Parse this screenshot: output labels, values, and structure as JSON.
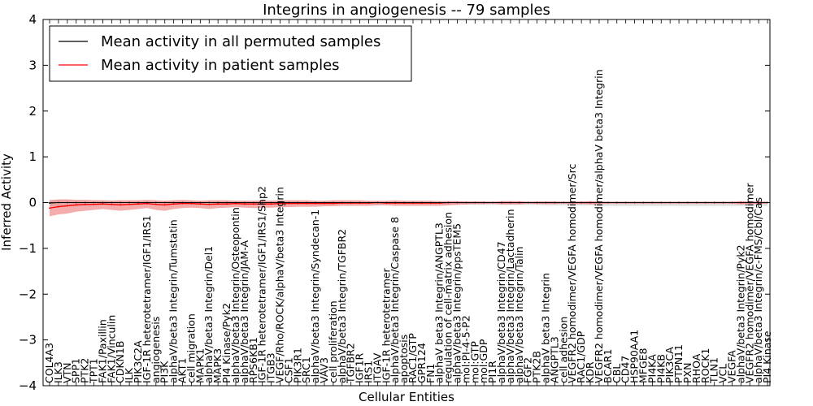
{
  "colors": {
    "mean_line": "#000000",
    "patient_line": "#ff0000",
    "patient_band": "#f08080",
    "permuted_band": "#cfcfcf"
  },
  "chart_data": {
    "type": "line",
    "title": "Integrins in angiogenesis -- 79 samples",
    "xlabel": "Cellular Entities",
    "ylabel": "Inferred Activity",
    "ylim": [
      -4,
      4
    ],
    "yticks": [
      -4,
      -3,
      -2,
      -1,
      0,
      1,
      2,
      3,
      4
    ],
    "grid": false,
    "legend_position": "top-left",
    "categories": [
      "COL4A3",
      "ILK3",
      "VTN",
      "SPP1",
      "PTK2",
      "TPT1",
      "FAK1/Paxillin",
      "FAK1/Vinculin",
      "CDKN1B",
      "ILK",
      "PIK3C2A",
      "IGF-1R heterotetramer/IGF1/IRS1",
      "angiogenesis",
      "PI3K",
      "alphaV/beta3 Integrin/Tumstatin",
      "AKT1",
      "cell migration",
      "MAPK1",
      "alphaV/beta3 Integrin/Del1",
      "MAPK3",
      "PI4 Kinase/Pyk2",
      "alphaV/beta3 Integrin/Osteopontin",
      "alphaV/beta3 Integrin/JAM-A",
      "RPS6KB1",
      "IGF-1R heterotetramer/IGF1/IRS1/Shp2",
      "ITGB3",
      "VEGF/Rho/ROCK/alphaV/beta3 Integrin",
      "CSF1",
      "PIK3R1",
      "SRC1",
      "alphaV/beta3 Integrin/Syndecan-1",
      "VAV3",
      "cell proliferation",
      "alphaV/beta3 Integrin/TGFBR2",
      "TGFBR2",
      "IGF1R",
      "IRS1",
      "ITGAV",
      "IGF-1R heterotetramer",
      "alphaV/beta3 Integrin/Caspase 8",
      "apoptosis",
      "RAC1/GTP",
      "GPR124",
      "FN1",
      "alphaV beta3 Integrin/ANGPTL3",
      "regulation of cell-matrix adhesion",
      "alphaV/beta3 Integrin/ppsTEM5",
      "mol:PI-4-5-P2",
      "mol:GTP",
      "mol:GDP",
      "PI1R",
      "alphaV/beta3 Integrin/CD47",
      "alphaV/beta3 Integrin/Lactadherin",
      "alphaV/beta3 Integrin/Talin",
      "FGF2",
      "PTK2B",
      "alphaV beta3 Integrin",
      "ANGPTL3",
      "cell adhesion",
      "VEGFR2 homodimer/VEGFA homodimer/Src",
      "RAC1/GDP",
      "KDR",
      "VEGFR2 homodimer/VEGFA homodimer/alphaV beta3 Integrin",
      "BCAR1",
      "CBL",
      "CD47",
      "HSP90AA1",
      "MFGE8",
      "PI4KA",
      "PI4KB",
      "PIK3CA",
      "PTPN11",
      "PXN",
      "RHOA",
      "ROCK1",
      "TLN1",
      "VCL",
      "VEGFA",
      "alphaV/beta3 Integrin/Pyk2",
      "VEGFR2 homodimer/VEGFA homodimer",
      "alphaV/beta3 Integrin/c-FMS/Cbl/Cas",
      "PI4 Kinase"
    ],
    "series": [
      {
        "name": "Mean activity in all permuted samples",
        "color": "#000000",
        "values": [
          -0.01,
          0,
          0,
          0,
          0,
          0,
          0,
          0,
          0,
          0,
          0,
          0,
          0,
          0,
          0,
          0,
          0,
          0,
          0,
          0,
          0,
          0,
          0,
          0,
          0,
          0,
          0,
          0,
          0,
          0,
          0,
          0,
          0,
          0,
          0,
          0,
          0,
          0,
          0,
          0,
          0,
          0,
          0,
          0,
          0,
          0,
          0,
          0,
          0,
          0,
          0,
          0,
          0,
          0,
          0,
          0,
          0,
          0,
          0,
          0,
          0,
          0,
          0,
          0,
          0,
          0,
          0,
          0,
          0,
          0,
          0,
          0,
          0,
          0,
          0,
          0,
          0,
          0,
          0,
          0,
          0,
          0
        ],
        "band_upper": [
          0.06,
          0.06,
          0.06,
          0.05,
          0.05,
          0.05,
          0.05,
          0.05,
          0.05,
          0.04,
          0.04,
          0.04,
          0.04,
          0.04,
          0.04,
          0.04,
          0.04,
          0.04,
          0.04,
          0.04,
          0.04,
          0.04,
          0.04,
          0.04,
          0.04,
          0.04,
          0.04,
          0.04,
          0.04,
          0.03,
          0.03,
          0.03,
          0.03,
          0.03,
          0.03,
          0.03,
          0.03,
          0.03,
          0.03,
          0.03,
          0.03,
          0.03,
          0.03,
          0.03,
          0.03,
          0.03,
          0.03,
          0.03,
          0.03,
          0.03,
          0.03,
          0.03,
          0.03,
          0.03,
          0.03,
          0.03,
          0.03,
          0.03,
          0.03,
          0.03,
          0.03,
          0.03,
          0.03,
          0.03,
          0.03,
          0.03,
          0.03,
          0.03,
          0.03,
          0.03,
          0.03,
          0.03,
          0.03,
          0.03,
          0.03,
          0.03,
          0.03,
          0.03,
          0.03,
          0.03,
          0.03,
          0.03
        ],
        "band_lower": [
          -0.08,
          -0.08,
          -0.08,
          -0.07,
          -0.07,
          -0.06,
          -0.06,
          -0.06,
          -0.06,
          -0.05,
          -0.05,
          -0.05,
          -0.05,
          -0.05,
          -0.05,
          -0.05,
          -0.05,
          -0.05,
          -0.05,
          -0.05,
          -0.05,
          -0.05,
          -0.05,
          -0.05,
          -0.05,
          -0.05,
          -0.05,
          -0.05,
          -0.04,
          -0.04,
          -0.04,
          -0.04,
          -0.04,
          -0.04,
          -0.04,
          -0.04,
          -0.04,
          -0.04,
          -0.04,
          -0.04,
          -0.04,
          -0.04,
          -0.04,
          -0.04,
          -0.04,
          -0.04,
          -0.04,
          -0.04,
          -0.05,
          -0.05,
          -0.05,
          -0.05,
          -0.05,
          -0.05,
          -0.05,
          -0.05,
          -0.06,
          -0.06,
          -0.06,
          -0.06,
          -0.06,
          -0.06,
          -0.07,
          -0.07,
          -0.07,
          -0.07,
          -0.07,
          -0.07,
          -0.07,
          -0.07,
          -0.07,
          -0.07,
          -0.07,
          -0.07,
          -0.07,
          -0.07,
          -0.07,
          -0.07,
          -0.07,
          -0.07,
          -0.07,
          -0.07
        ]
      },
      {
        "name": "Mean activity in patient samples",
        "color": "#ff0000",
        "values": [
          -0.12,
          -0.09,
          -0.07,
          -0.05,
          -0.04,
          -0.04,
          -0.03,
          -0.04,
          -0.05,
          -0.04,
          -0.03,
          -0.02,
          -0.04,
          -0.05,
          -0.03,
          -0.02,
          -0.02,
          -0.03,
          -0.04,
          -0.03,
          -0.03,
          -0.02,
          -0.03,
          -0.03,
          -0.03,
          -0.03,
          -0.02,
          -0.02,
          -0.02,
          -0.02,
          -0.02,
          -0.02,
          -0.02,
          -0.01,
          -0.01,
          -0.01,
          -0.01,
          0,
          -0.01,
          -0.01,
          -0.01,
          -0.01,
          -0.01,
          -0.01,
          -0.01,
          0,
          0,
          0,
          0,
          0,
          0,
          0,
          0,
          0,
          0,
          0,
          0,
          0,
          0,
          0,
          0,
          0,
          0,
          0,
          0,
          0,
          0,
          0,
          0,
          0,
          0,
          0,
          0,
          0,
          0,
          0,
          0,
          0,
          0,
          0,
          0,
          0
        ],
        "band_upper": [
          0.05,
          0.07,
          0.07,
          0.06,
          0.06,
          0.05,
          0.05,
          0.04,
          0.05,
          0.05,
          0.05,
          0.06,
          0.05,
          0.04,
          0.05,
          0.06,
          0.05,
          0.04,
          0.05,
          0.05,
          0.05,
          0.04,
          0.04,
          0.04,
          0.05,
          0.04,
          0.05,
          0.05,
          0.05,
          0.05,
          0.04,
          0.04,
          0.05,
          0.05,
          0.05,
          0.05,
          0.04,
          0.04,
          0.04,
          0.05,
          0.04,
          0.04,
          0.04,
          0.04,
          0.03,
          0.03,
          0.03,
          0.02,
          0.02,
          0.02,
          0.01,
          0.03,
          0.03,
          0.03,
          0.01,
          0.02,
          0.02,
          0.02,
          0.01,
          0.02,
          0.02,
          0.03,
          0.02,
          0.01,
          0.01,
          0.01,
          0.01,
          0.01,
          0.01,
          0.01,
          0.01,
          0.01,
          0.01,
          0.01,
          0.01,
          0.01,
          0.01,
          0.01,
          0.03,
          0.02,
          0.02,
          0.01
        ],
        "band_lower": [
          -0.3,
          -0.26,
          -0.24,
          -0.2,
          -0.18,
          -0.16,
          -0.14,
          -0.16,
          -0.18,
          -0.16,
          -0.14,
          -0.12,
          -0.16,
          -0.18,
          -0.14,
          -0.12,
          -0.11,
          -0.12,
          -0.14,
          -0.12,
          -0.11,
          -0.1,
          -0.11,
          -0.12,
          -0.11,
          -0.11,
          -0.1,
          -0.1,
          -0.09,
          -0.09,
          -0.09,
          -0.08,
          -0.08,
          -0.07,
          -0.07,
          -0.07,
          -0.07,
          -0.06,
          -0.06,
          -0.07,
          -0.07,
          -0.07,
          -0.07,
          -0.07,
          -0.07,
          -0.06,
          -0.05,
          -0.04,
          -0.03,
          -0.03,
          -0.02,
          -0.04,
          -0.04,
          -0.04,
          -0.02,
          -0.03,
          -0.03,
          -0.03,
          -0.02,
          -0.03,
          -0.03,
          -0.04,
          -0.03,
          -0.02,
          -0.02,
          -0.02,
          -0.02,
          -0.02,
          -0.02,
          -0.02,
          -0.02,
          -0.02,
          -0.02,
          -0.02,
          -0.02,
          -0.02,
          -0.02,
          -0.02,
          -0.04,
          -0.03,
          -0.03,
          -0.02
        ]
      }
    ]
  }
}
